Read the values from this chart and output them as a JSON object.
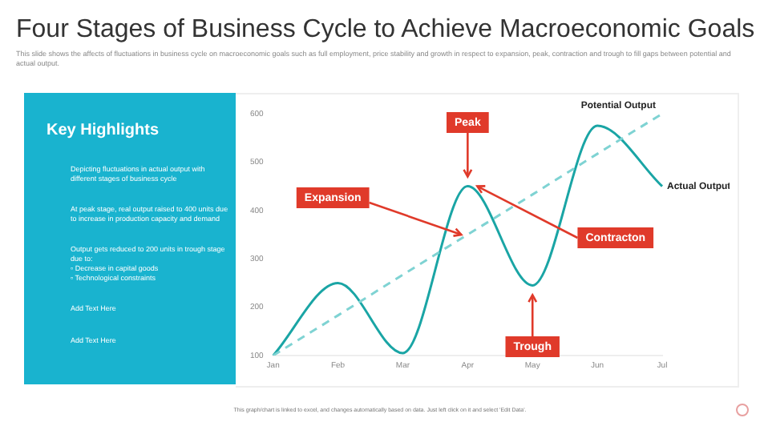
{
  "chart_data": {
    "type": "line",
    "title": "Four Stages of Business Cycle to Achieve Macroeconomic Goals",
    "subtitle": "This slide shows the affects of fluctuations in business cycle on macroeconomic goals such as full employment, price stability and growth in respect to expansion, peak, contraction and trough to fill gaps between potential and actual output.",
    "categories": [
      "Jan",
      "Feb",
      "Mar",
      "Apr",
      "May",
      "Jun",
      "Jul"
    ],
    "series": [
      {
        "name": "Potential Output",
        "color": "#7fd3d3",
        "values": [
          100,
          183,
          267,
          350,
          433,
          517,
          600
        ],
        "line_style": "dashed"
      },
      {
        "name": "Actual Output",
        "color": "#1aa5a5",
        "values": [
          100,
          250,
          105,
          450,
          245,
          575,
          450
        ],
        "line_style": "solid"
      }
    ],
    "ylim": [
      100,
      600
    ],
    "yticks": [
      100,
      200,
      300,
      400,
      500,
      600
    ],
    "grid": false,
    "legend": false,
    "marker": "none",
    "annotations": [
      "Key Highlights",
      "Depicting fluctuations in actual output with different stages of business cycle",
      "At peak stage, real output raised to 400 units due to increase in production capacity and demand",
      "Output gets reduced to 200 units in trough stage due to:\n▫ Decrease in capital goods\n▫ Technological constraints",
      "Add Text Here",
      "Add Text Here",
      "This graph/chart is linked to excel, and changes automatically based on data. Just left click on it and select 'Edit Data'.",
      {
        "text": "Peak",
        "x": "Apr",
        "y": 450
      },
      {
        "text": "Expansion",
        "x": "Apr",
        "y": 350
      },
      {
        "text": "Contracton",
        "x": "Apr",
        "y": 450
      },
      {
        "text": "Trough",
        "x": "May",
        "y": 245
      }
    ]
  }
}
